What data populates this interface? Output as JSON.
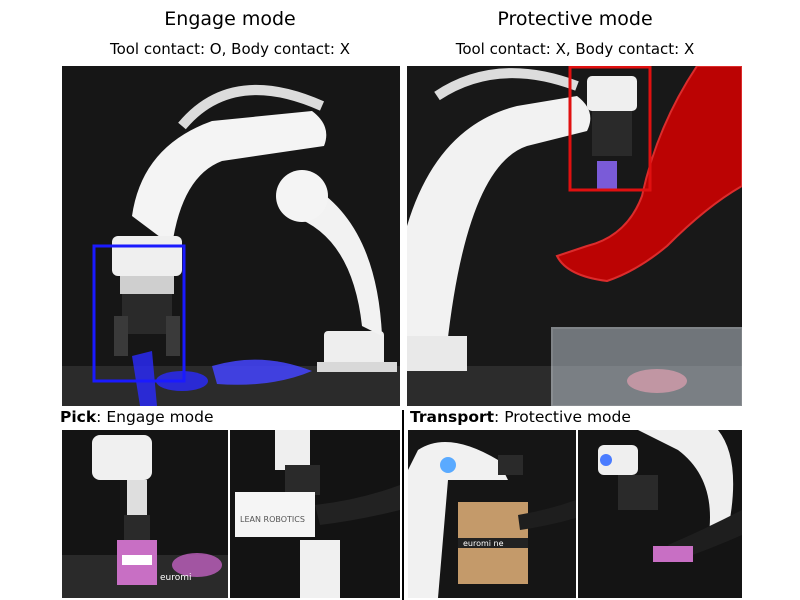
{
  "left_column": {
    "title": "Engage mode",
    "subtitle": "Tool contact: O, Body contact: X"
  },
  "right_column": {
    "title": "Protective mode",
    "subtitle": "Tool contact: X, Body contact: X"
  },
  "bottom_left_caption": {
    "bold": "Pick",
    "rest": ": Engage mode"
  },
  "bottom_right_caption": {
    "bold": "Transport",
    "rest": ": Protective mode"
  },
  "box_labels": {
    "lean_robotics": "LEAN ROBOTICS",
    "neuromeka_top": "euromi",
    "neuromeka_box": "euromi ne"
  },
  "colors": {
    "engage_highlight": "#1a1aff",
    "protect_highlight": "#e01010"
  }
}
